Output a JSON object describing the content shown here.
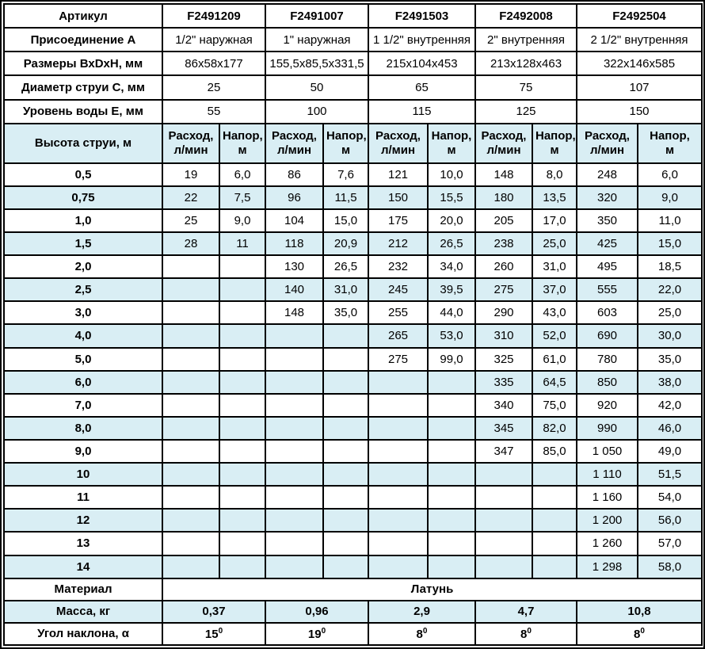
{
  "colors": {
    "accent_blue": "#1b3d94",
    "row_alt": "#d9eef4",
    "border": "#000000"
  },
  "spec_rows": [
    {
      "label": "Артикул",
      "article": true,
      "values": [
        "F2491209",
        "F2491007",
        "F2491503",
        "F2492008",
        "F2492504"
      ]
    },
    {
      "label": "Присоединение А",
      "article": false,
      "values": [
        "1/2\" наружная",
        "1\" наружная",
        "1 1/2\" внутренняя",
        "2\" внутренняя",
        "2 1/2\" внутренняя"
      ]
    },
    {
      "label": "Размеры ВхDхН, мм",
      "article": false,
      "values": [
        "86x58x177",
        "155,5x85,5x331,5",
        "215x104x453",
        "213x128x463",
        "322x146x585"
      ]
    },
    {
      "label": "Диаметр струи С, мм",
      "article": false,
      "values": [
        "25",
        "50",
        "65",
        "75",
        "107"
      ]
    },
    {
      "label": "Уровень воды Е, мм",
      "article": false,
      "values": [
        "55",
        "100",
        "115",
        "125",
        "150"
      ]
    }
  ],
  "jet_header": {
    "label": "Высота струи, м",
    "flow_label": "Расход,\nл/мин",
    "head_label": "Напор,\nм"
  },
  "jet_rows": [
    {
      "height": "0,5",
      "values": [
        "19",
        "6,0",
        "86",
        "7,6",
        "121",
        "10,0",
        "148",
        "8,0",
        "248",
        "6,0"
      ]
    },
    {
      "height": "0,75",
      "values": [
        "22",
        "7,5",
        "96",
        "11,5",
        "150",
        "15,5",
        "180",
        "13,5",
        "320",
        "9,0"
      ]
    },
    {
      "height": "1,0",
      "values": [
        "25",
        "9,0",
        "104",
        "15,0",
        "175",
        "20,0",
        "205",
        "17,0",
        "350",
        "11,0"
      ]
    },
    {
      "height": "1,5",
      "values": [
        "28",
        "11",
        "118",
        "20,9",
        "212",
        "26,5",
        "238",
        "25,0",
        "425",
        "15,0"
      ]
    },
    {
      "height": "2,0",
      "values": [
        "",
        "",
        "130",
        "26,5",
        "232",
        "34,0",
        "260",
        "31,0",
        "495",
        "18,5"
      ]
    },
    {
      "height": "2,5",
      "values": [
        "",
        "",
        "140",
        "31,0",
        "245",
        "39,5",
        "275",
        "37,0",
        "555",
        "22,0"
      ]
    },
    {
      "height": "3,0",
      "values": [
        "",
        "",
        "148",
        "35,0",
        "255",
        "44,0",
        "290",
        "43,0",
        "603",
        "25,0"
      ]
    },
    {
      "height": "4,0",
      "values": [
        "",
        "",
        "",
        "",
        "265",
        "53,0",
        "310",
        "52,0",
        "690",
        "30,0"
      ]
    },
    {
      "height": "5,0",
      "values": [
        "",
        "",
        "",
        "",
        "275",
        "99,0",
        "325",
        "61,0",
        "780",
        "35,0"
      ]
    },
    {
      "height": "6,0",
      "values": [
        "",
        "",
        "",
        "",
        "",
        "",
        "335",
        "64,5",
        "850",
        "38,0"
      ]
    },
    {
      "height": "7,0",
      "values": [
        "",
        "",
        "",
        "",
        "",
        "",
        "340",
        "75,0",
        "920",
        "42,0"
      ]
    },
    {
      "height": "8,0",
      "values": [
        "",
        "",
        "",
        "",
        "",
        "",
        "345",
        "82,0",
        "990",
        "46,0"
      ]
    },
    {
      "height": "9,0",
      "values": [
        "",
        "",
        "",
        "",
        "",
        "",
        "347",
        "85,0",
        "1 050",
        "49,0"
      ]
    },
    {
      "height": "10",
      "values": [
        "",
        "",
        "",
        "",
        "",
        "",
        "",
        "",
        "1 110",
        "51,5"
      ]
    },
    {
      "height": "11",
      "values": [
        "",
        "",
        "",
        "",
        "",
        "",
        "",
        "",
        "1 160",
        "54,0"
      ]
    },
    {
      "height": "12",
      "values": [
        "",
        "",
        "",
        "",
        "",
        "",
        "",
        "",
        "1 200",
        "56,0"
      ]
    },
    {
      "height": "13",
      "values": [
        "",
        "",
        "",
        "",
        "",
        "",
        "",
        "",
        "1 260",
        "57,0"
      ]
    },
    {
      "height": "14",
      "values": [
        "",
        "",
        "",
        "",
        "",
        "",
        "",
        "",
        "1 298",
        "58,0"
      ]
    }
  ],
  "material": {
    "label": "Материал",
    "value": "Латунь"
  },
  "mass": {
    "label": "Масса, кг",
    "values": [
      "0,37",
      "0,96",
      "2,9",
      "4,7",
      "10,8"
    ]
  },
  "angle": {
    "label": "Угол наклона, α",
    "values": [
      {
        "value": "15",
        "sup": "0"
      },
      {
        "value": "19",
        "sup": "0"
      },
      {
        "value": "8",
        "sup": "0"
      },
      {
        "value": "8",
        "sup": "0"
      },
      {
        "value": "8",
        "sup": "0"
      }
    ]
  }
}
